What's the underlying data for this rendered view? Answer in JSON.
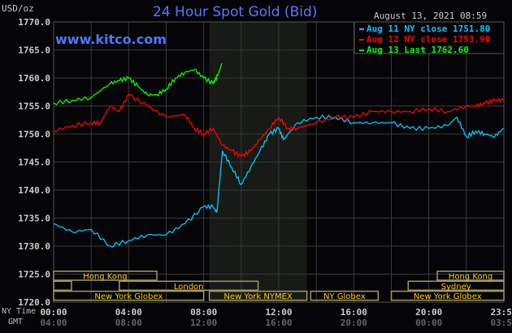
{
  "chart_data": {
    "type": "line",
    "title": "24 Hour Spot Gold (Bid)",
    "unit_label": "USD/oz",
    "site": "www.kitco.com",
    "timestamp": "August 13, 2021 08:59",
    "ylim": [
      1720,
      1770
    ],
    "yticks": [
      "1770.0",
      "1765.0",
      "1760.0",
      "1755.0",
      "1750.0",
      "1745.0",
      "1740.0",
      "1735.0",
      "1730.0",
      "1725.0",
      "1720.0"
    ],
    "xlabel_ny": "NY Time",
    "xlabel_gmt": "GMT",
    "xticks_ny": [
      "00:00",
      "04:00",
      "08:00",
      "12:00",
      "16:00",
      "20:00",
      "23:59"
    ],
    "xticks_gmt": [
      "04:00",
      "08:00",
      "12:00",
      "16:00",
      "20:00",
      "00:00",
      "03:59"
    ],
    "grid": true,
    "legend_placement": "top-right",
    "series": [
      {
        "name": "Aug 11 NY close 1751.80",
        "color": "#00c8ff",
        "hours": [
          0,
          1,
          2,
          3,
          4,
          5,
          6,
          7,
          8,
          8.5,
          8.7,
          9,
          9.5,
          10,
          10.5,
          11,
          11.5,
          12,
          12.25,
          13,
          14,
          15,
          16,
          17,
          18,
          19,
          20,
          21,
          21.5,
          22,
          22.5,
          23,
          23.5,
          23.98
        ],
        "values": [
          1734,
          1732.5,
          1733,
          1730,
          1731,
          1732,
          1732,
          1734,
          1737,
          1737,
          1736,
          1747,
          1744,
          1741,
          1744,
          1747,
          1750,
          1751,
          1749,
          1752,
          1753,
          1753,
          1752,
          1752,
          1752,
          1751,
          1751,
          1751.5,
          1753,
          1749.5,
          1750.5,
          1750,
          1749.5,
          1751
        ]
      },
      {
        "name": "Aug 12 NY close 1753.90",
        "color": "#ff0000",
        "hours": [
          0,
          1,
          2,
          2.5,
          3,
          3.5,
          4,
          5,
          6,
          7,
          7.5,
          8,
          8.5,
          9,
          9.5,
          10,
          10.5,
          11,
          11.5,
          12,
          12.5,
          13,
          14,
          15,
          16,
          17,
          18,
          19,
          20,
          21,
          22,
          22.5,
          23,
          23.5,
          23.98
        ],
        "values": [
          1750.5,
          1751.5,
          1752,
          1752,
          1755,
          1754,
          1757,
          1755,
          1753,
          1753.5,
          1751,
          1750,
          1751,
          1748,
          1747,
          1746,
          1747,
          1749,
          1751,
          1753,
          1751,
          1751,
          1752,
          1753,
          1753,
          1754,
          1754,
          1754,
          1754.5,
          1754,
          1755,
          1755,
          1755.5,
          1756,
          1756
        ]
      },
      {
        "name": "Aug 13 Last 1762.60",
        "color": "#00ff00",
        "hours": [
          0,
          1,
          2,
          3,
          3.5,
          4,
          4.5,
          5,
          5.5,
          6,
          6.5,
          7,
          7.5,
          8,
          8.5,
          8.75,
          8.98
        ],
        "values": [
          1755.5,
          1756,
          1756.5,
          1759,
          1759.5,
          1760,
          1758.5,
          1757,
          1757,
          1758,
          1760,
          1761,
          1761.5,
          1760,
          1759,
          1760.5,
          1762.6
        ]
      }
    ],
    "shaded_session_hours": [
      8.3,
      13.5
    ],
    "sessions": [
      {
        "label": "Hong Kong",
        "row": 0,
        "start": 0,
        "end": 5.5
      },
      {
        "label": "Hong Kong",
        "row": 0,
        "start": 20.45,
        "end": 24
      },
      {
        "label": "",
        "row": 1,
        "start": 0,
        "end": 0.95
      },
      {
        "label": "London",
        "row": 1,
        "start": 3.5,
        "end": 10.9
      },
      {
        "label": "Sydney",
        "row": 1,
        "start": 18.9,
        "end": 24
      },
      {
        "label": "New York Globex",
        "row": 2,
        "start": 0,
        "end": 8.0
      },
      {
        "label": "New York NYMEX",
        "row": 2,
        "start": 8.3,
        "end": 13.5
      },
      {
        "label": "NY Globex",
        "row": 2,
        "start": 13.7,
        "end": 17.3
      },
      {
        "label": "New York Globex",
        "row": 2,
        "start": 18.0,
        "end": 24
      }
    ]
  }
}
